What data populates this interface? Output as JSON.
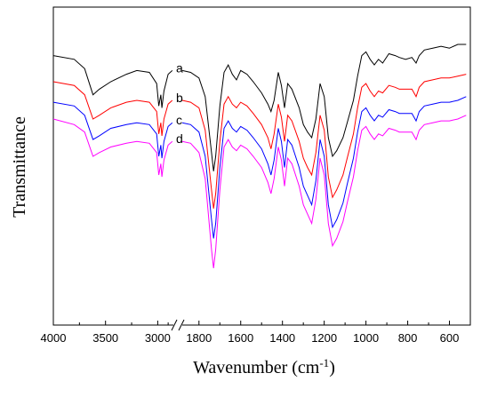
{
  "chart_data": {
    "type": "line",
    "xlabel": "Wavenumber (cm",
    "xlabel_sup": "-1",
    "xlabel_close": ")",
    "ylabel": "Transmittance",
    "x_axis": {
      "reversed": true,
      "broken": true,
      "segments": [
        {
          "from": 4000,
          "to": 2850
        },
        {
          "from": 1880,
          "to": 500
        }
      ],
      "ticks": [
        4000,
        3500,
        3000,
        1800,
        1600,
        1400,
        1200,
        1000,
        800,
        600
      ],
      "tick_labels": [
        "4000",
        "3500",
        "3000",
        "1800",
        "1600",
        "1400",
        "1200",
        "1000",
        "800",
        "600"
      ]
    },
    "y_ticks_labeled": false,
    "grid": false,
    "series": [
      {
        "name": "a",
        "color": "#000000",
        "points": [
          [
            4000,
            0.06
          ],
          [
            3800,
            0.08
          ],
          [
            3700,
            0.13
          ],
          [
            3620,
            0.27
          ],
          [
            3560,
            0.24
          ],
          [
            3450,
            0.2
          ],
          [
            3300,
            0.16
          ],
          [
            3200,
            0.14
          ],
          [
            3080,
            0.15
          ],
          [
            3010,
            0.21
          ],
          [
            2990,
            0.33
          ],
          [
            2970,
            0.27
          ],
          [
            2960,
            0.34
          ],
          [
            2940,
            0.25
          ],
          [
            2900,
            0.16
          ],
          [
            2860,
            0.14
          ],
          [
            1880,
            0.14
          ],
          [
            1840,
            0.15
          ],
          [
            1800,
            0.18
          ],
          [
            1770,
            0.28
          ],
          [
            1740,
            0.58
          ],
          [
            1730,
            0.68
          ],
          [
            1720,
            0.6
          ],
          [
            1700,
            0.33
          ],
          [
            1680,
            0.15
          ],
          [
            1660,
            0.11
          ],
          [
            1640,
            0.16
          ],
          [
            1620,
            0.19
          ],
          [
            1600,
            0.14
          ],
          [
            1570,
            0.16
          ],
          [
            1540,
            0.2
          ],
          [
            1500,
            0.26
          ],
          [
            1470,
            0.32
          ],
          [
            1455,
            0.36
          ],
          [
            1440,
            0.3
          ],
          [
            1420,
            0.15
          ],
          [
            1405,
            0.22
          ],
          [
            1390,
            0.34
          ],
          [
            1375,
            0.21
          ],
          [
            1355,
            0.24
          ],
          [
            1320,
            0.34
          ],
          [
            1300,
            0.43
          ],
          [
            1280,
            0.47
          ],
          [
            1260,
            0.5
          ],
          [
            1240,
            0.4
          ],
          [
            1220,
            0.21
          ],
          [
            1200,
            0.28
          ],
          [
            1180,
            0.5
          ],
          [
            1160,
            0.6
          ],
          [
            1140,
            0.57
          ],
          [
            1110,
            0.5
          ],
          [
            1090,
            0.42
          ],
          [
            1060,
            0.3
          ],
          [
            1040,
            0.17
          ],
          [
            1020,
            0.06
          ],
          [
            1000,
            0.04
          ],
          [
            980,
            0.08
          ],
          [
            960,
            0.11
          ],
          [
            940,
            0.08
          ],
          [
            920,
            0.1
          ],
          [
            890,
            0.05
          ],
          [
            860,
            0.06
          ],
          [
            840,
            0.07
          ],
          [
            810,
            0.08
          ],
          [
            780,
            0.07
          ],
          [
            760,
            0.1
          ],
          [
            745,
            0.06
          ],
          [
            720,
            0.03
          ],
          [
            680,
            0.02
          ],
          [
            640,
            0.01
          ],
          [
            600,
            0.02
          ],
          [
            560,
            0.0
          ],
          [
            520,
            0.0
          ]
        ]
      },
      {
        "name": "b",
        "color": "#ff0000",
        "offset": 0.16,
        "points": [
          [
            4000,
            0.04
          ],
          [
            3800,
            0.06
          ],
          [
            3700,
            0.11
          ],
          [
            3620,
            0.24
          ],
          [
            3560,
            0.22
          ],
          [
            3450,
            0.18
          ],
          [
            3300,
            0.15
          ],
          [
            3200,
            0.14
          ],
          [
            3080,
            0.15
          ],
          [
            3010,
            0.2
          ],
          [
            2990,
            0.32
          ],
          [
            2970,
            0.26
          ],
          [
            2960,
            0.33
          ],
          [
            2940,
            0.24
          ],
          [
            2900,
            0.16
          ],
          [
            2860,
            0.14
          ],
          [
            1880,
            0.14
          ],
          [
            1840,
            0.15
          ],
          [
            1800,
            0.18
          ],
          [
            1770,
            0.3
          ],
          [
            1740,
            0.62
          ],
          [
            1730,
            0.72
          ],
          [
            1720,
            0.64
          ],
          [
            1700,
            0.36
          ],
          [
            1680,
            0.16
          ],
          [
            1660,
            0.12
          ],
          [
            1640,
            0.16
          ],
          [
            1620,
            0.18
          ],
          [
            1600,
            0.15
          ],
          [
            1570,
            0.17
          ],
          [
            1540,
            0.21
          ],
          [
            1500,
            0.27
          ],
          [
            1470,
            0.34
          ],
          [
            1455,
            0.4
          ],
          [
            1440,
            0.32
          ],
          [
            1420,
            0.16
          ],
          [
            1405,
            0.23
          ],
          [
            1390,
            0.36
          ],
          [
            1375,
            0.22
          ],
          [
            1355,
            0.25
          ],
          [
            1320,
            0.36
          ],
          [
            1300,
            0.45
          ],
          [
            1280,
            0.5
          ],
          [
            1260,
            0.54
          ],
          [
            1240,
            0.42
          ],
          [
            1220,
            0.22
          ],
          [
            1200,
            0.3
          ],
          [
            1180,
            0.55
          ],
          [
            1160,
            0.66
          ],
          [
            1140,
            0.62
          ],
          [
            1110,
            0.54
          ],
          [
            1090,
            0.45
          ],
          [
            1060,
            0.32
          ],
          [
            1040,
            0.18
          ],
          [
            1020,
            0.07
          ],
          [
            1000,
            0.05
          ],
          [
            980,
            0.09
          ],
          [
            960,
            0.12
          ],
          [
            940,
            0.09
          ],
          [
            920,
            0.1
          ],
          [
            890,
            0.06
          ],
          [
            860,
            0.07
          ],
          [
            840,
            0.08
          ],
          [
            810,
            0.08
          ],
          [
            780,
            0.08
          ],
          [
            760,
            0.12
          ],
          [
            745,
            0.07
          ],
          [
            720,
            0.04
          ],
          [
            680,
            0.03
          ],
          [
            640,
            0.02
          ],
          [
            600,
            0.02
          ],
          [
            560,
            0.01
          ],
          [
            520,
            0.0
          ]
        ]
      },
      {
        "name": "c",
        "color": "#0000ff",
        "offset": 0.28,
        "points": [
          [
            4000,
            0.03
          ],
          [
            3800,
            0.05
          ],
          [
            3700,
            0.1
          ],
          [
            3620,
            0.23
          ],
          [
            3560,
            0.21
          ],
          [
            3450,
            0.17
          ],
          [
            3300,
            0.15
          ],
          [
            3200,
            0.14
          ],
          [
            3080,
            0.15
          ],
          [
            3010,
            0.2
          ],
          [
            2990,
            0.32
          ],
          [
            2970,
            0.26
          ],
          [
            2960,
            0.33
          ],
          [
            2940,
            0.24
          ],
          [
            2900,
            0.16
          ],
          [
            2860,
            0.14
          ],
          [
            1880,
            0.14
          ],
          [
            1840,
            0.15
          ],
          [
            1800,
            0.19
          ],
          [
            1770,
            0.32
          ],
          [
            1740,
            0.66
          ],
          [
            1730,
            0.76
          ],
          [
            1720,
            0.68
          ],
          [
            1700,
            0.38
          ],
          [
            1680,
            0.17
          ],
          [
            1660,
            0.13
          ],
          [
            1640,
            0.17
          ],
          [
            1620,
            0.19
          ],
          [
            1600,
            0.16
          ],
          [
            1570,
            0.18
          ],
          [
            1540,
            0.22
          ],
          [
            1500,
            0.28
          ],
          [
            1470,
            0.36
          ],
          [
            1455,
            0.42
          ],
          [
            1440,
            0.34
          ],
          [
            1420,
            0.17
          ],
          [
            1405,
            0.24
          ],
          [
            1390,
            0.38
          ],
          [
            1375,
            0.23
          ],
          [
            1355,
            0.26
          ],
          [
            1320,
            0.38
          ],
          [
            1300,
            0.48
          ],
          [
            1280,
            0.53
          ],
          [
            1260,
            0.58
          ],
          [
            1240,
            0.45
          ],
          [
            1220,
            0.23
          ],
          [
            1200,
            0.32
          ],
          [
            1180,
            0.58
          ],
          [
            1160,
            0.7
          ],
          [
            1140,
            0.66
          ],
          [
            1110,
            0.57
          ],
          [
            1090,
            0.47
          ],
          [
            1060,
            0.33
          ],
          [
            1040,
            0.19
          ],
          [
            1020,
            0.08
          ],
          [
            1000,
            0.06
          ],
          [
            980,
            0.1
          ],
          [
            960,
            0.13
          ],
          [
            940,
            0.1
          ],
          [
            920,
            0.11
          ],
          [
            890,
            0.07
          ],
          [
            860,
            0.08
          ],
          [
            840,
            0.09
          ],
          [
            810,
            0.09
          ],
          [
            780,
            0.09
          ],
          [
            760,
            0.13
          ],
          [
            745,
            0.08
          ],
          [
            720,
            0.05
          ],
          [
            680,
            0.04
          ],
          [
            640,
            0.03
          ],
          [
            600,
            0.03
          ],
          [
            560,
            0.02
          ],
          [
            520,
            0.0
          ]
        ]
      },
      {
        "name": "d",
        "color": "#ff00ff",
        "offset": 0.38,
        "points": [
          [
            4000,
            0.02
          ],
          [
            3800,
            0.05
          ],
          [
            3700,
            0.09
          ],
          [
            3620,
            0.22
          ],
          [
            3560,
            0.2
          ],
          [
            3450,
            0.17
          ],
          [
            3300,
            0.15
          ],
          [
            3200,
            0.14
          ],
          [
            3080,
            0.15
          ],
          [
            3010,
            0.2
          ],
          [
            2990,
            0.32
          ],
          [
            2970,
            0.26
          ],
          [
            2960,
            0.33
          ],
          [
            2940,
            0.24
          ],
          [
            2900,
            0.16
          ],
          [
            2860,
            0.14
          ],
          [
            1880,
            0.14
          ],
          [
            1840,
            0.15
          ],
          [
            1800,
            0.2
          ],
          [
            1770,
            0.34
          ],
          [
            1740,
            0.72
          ],
          [
            1730,
            0.82
          ],
          [
            1720,
            0.72
          ],
          [
            1700,
            0.4
          ],
          [
            1680,
            0.17
          ],
          [
            1660,
            0.13
          ],
          [
            1640,
            0.17
          ],
          [
            1620,
            0.19
          ],
          [
            1600,
            0.16
          ],
          [
            1570,
            0.18
          ],
          [
            1540,
            0.22
          ],
          [
            1500,
            0.28
          ],
          [
            1470,
            0.36
          ],
          [
            1455,
            0.42
          ],
          [
            1440,
            0.34
          ],
          [
            1420,
            0.17
          ],
          [
            1405,
            0.24
          ],
          [
            1390,
            0.38
          ],
          [
            1375,
            0.23
          ],
          [
            1355,
            0.26
          ],
          [
            1320,
            0.38
          ],
          [
            1300,
            0.48
          ],
          [
            1280,
            0.53
          ],
          [
            1260,
            0.58
          ],
          [
            1240,
            0.45
          ],
          [
            1220,
            0.23
          ],
          [
            1200,
            0.32
          ],
          [
            1180,
            0.58
          ],
          [
            1160,
            0.7
          ],
          [
            1140,
            0.66
          ],
          [
            1110,
            0.57
          ],
          [
            1090,
            0.47
          ],
          [
            1060,
            0.33
          ],
          [
            1040,
            0.19
          ],
          [
            1020,
            0.08
          ],
          [
            1000,
            0.06
          ],
          [
            980,
            0.1
          ],
          [
            960,
            0.13
          ],
          [
            940,
            0.1
          ],
          [
            920,
            0.11
          ],
          [
            890,
            0.07
          ],
          [
            860,
            0.08
          ],
          [
            840,
            0.09
          ],
          [
            810,
            0.09
          ],
          [
            780,
            0.09
          ],
          [
            760,
            0.13
          ],
          [
            745,
            0.08
          ],
          [
            720,
            0.05
          ],
          [
            680,
            0.04
          ],
          [
            640,
            0.03
          ],
          [
            600,
            0.03
          ],
          [
            560,
            0.02
          ],
          [
            520,
            0.0
          ]
        ]
      }
    ]
  }
}
